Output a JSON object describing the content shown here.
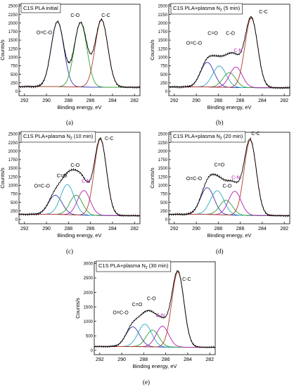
{
  "figure": {
    "panel_labels": [
      "(a)",
      "(b)",
      "(c)",
      "(d)",
      "(e)"
    ]
  },
  "chart_data": [
    {
      "type": "line",
      "panel": "(a)",
      "title": "C1S PLA initial",
      "xlabel": "Binding energy, eV",
      "ylabel": "Counts/s",
      "xlim": [
        292,
        282
      ],
      "ylim": [
        0,
        2500
      ],
      "x_ticks": [
        292,
        290,
        288,
        286,
        284,
        282
      ],
      "y_ticks": [
        0,
        250,
        500,
        750,
        1000,
        1250,
        1500,
        1750,
        2000,
        2250,
        2500
      ],
      "grid": false,
      "baseline": [
        [
          293,
          140
        ],
        [
          289,
          140
        ],
        [
          286,
          125
        ],
        [
          281.5,
          120
        ]
      ],
      "peaks": [
        {
          "label": "O=C-O",
          "center": 289.0,
          "height": 1900,
          "fwhm": 1.35,
          "color": "#3a3aa8"
        },
        {
          "label": "C-O",
          "center": 286.9,
          "height": 1880,
          "fwhm": 1.35,
          "color": "#32a032"
        },
        {
          "label": "C-C",
          "center": 285.0,
          "height": 1970,
          "fwhm": 1.35,
          "color": "#b03a2a"
        }
      ],
      "peak_labels": [
        {
          "text": "O=C-O",
          "color": "#000000",
          "x": 290.2,
          "y": 1680
        },
        {
          "text": "C-O",
          "color": "#000000",
          "x": 287.4,
          "y": 2180
        },
        {
          "text": "C-C",
          "color": "#000000",
          "x": 284.6,
          "y": 2180
        }
      ]
    },
    {
      "type": "line",
      "panel": "(b)",
      "title": "C1S PLA+plasma N",
      "title_sub": "2",
      "title_tail": " (5 min)",
      "xlabel": "Binding energy, eV",
      "ylabel": "Counts/s",
      "xlim": [
        292,
        282
      ],
      "ylim": [
        0,
        2500
      ],
      "x_ticks": [
        292,
        290,
        288,
        286,
        284,
        282
      ],
      "y_ticks": [
        0,
        250,
        500,
        750,
        1000,
        1250,
        1500,
        1750,
        2000,
        2250,
        2500
      ],
      "grid": false,
      "baseline": [
        [
          293,
          130
        ],
        [
          289,
          130
        ],
        [
          286,
          110
        ],
        [
          281.5,
          105
        ]
      ],
      "peaks": [
        {
          "label": "O=C-O",
          "center": 289.0,
          "height": 720,
          "fwhm": 1.45,
          "color": "#3a3aa8"
        },
        {
          "label": "C=O",
          "center": 287.9,
          "height": 620,
          "fwhm": 1.45,
          "color": "#2aa8c8"
        },
        {
          "label": "C-O",
          "center": 287.0,
          "height": 430,
          "fwhm": 1.35,
          "color": "#32a032"
        },
        {
          "label": "C-N",
          "center": 286.4,
          "height": 600,
          "fwhm": 1.35,
          "color": "#b020b0"
        },
        {
          "label": "C-C",
          "center": 285.0,
          "height": 2040,
          "fwhm": 1.35,
          "color": "#b03a2a"
        }
      ],
      "peak_labels": [
        {
          "text": "O=C-O",
          "color": "#000000",
          "x": 290.2,
          "y": 1370
        },
        {
          "text": "C=O",
          "color": "#000000",
          "x": 288.5,
          "y": 1650
        },
        {
          "text": "C-O",
          "color": "#000000",
          "x": 286.9,
          "y": 1650
        },
        {
          "text": "C-N",
          "color": "#b020b0",
          "x": 286.2,
          "y": 1150
        },
        {
          "text": "C-C",
          "color": "#000000",
          "x": 283.9,
          "y": 2280
        }
      ]
    },
    {
      "type": "line",
      "panel": "(c)",
      "title": "C1S PLA+plasma N",
      "title_sub": "2",
      "title_tail": " (10 min)",
      "xlabel": "Binding energy, eV",
      "ylabel": "Counts/s",
      "xlim": [
        292,
        282
      ],
      "ylim": [
        0,
        2500
      ],
      "x_ticks": [
        292,
        290,
        288,
        286,
        284,
        282
      ],
      "y_ticks": [
        0,
        250,
        500,
        750,
        1000,
        1250,
        1500,
        1750,
        2000,
        2250,
        2500
      ],
      "grid": false,
      "baseline": [
        [
          293,
          150
        ],
        [
          289,
          150
        ],
        [
          286,
          120
        ],
        [
          281.5,
          110
        ]
      ],
      "peaks": [
        {
          "label": "O=C-O",
          "center": 289.2,
          "height": 560,
          "fwhm": 1.45,
          "color": "#3a3aa8"
        },
        {
          "label": "C=O",
          "center": 288.1,
          "height": 880,
          "fwhm": 1.45,
          "color": "#2aa8c8"
        },
        {
          "label": "C-O",
          "center": 287.3,
          "height": 580,
          "fwhm": 1.35,
          "color": "#32a032"
        },
        {
          "label": "C-N",
          "center": 286.6,
          "height": 720,
          "fwhm": 1.35,
          "color": "#b020b0"
        },
        {
          "label": "C-C",
          "center": 285.1,
          "height": 2230,
          "fwhm": 1.3,
          "color": "#b03a2a"
        }
      ],
      "peak_labels": [
        {
          "text": "O=C-O",
          "color": "#000000",
          "x": 290.4,
          "y": 930
        },
        {
          "text": "C=O",
          "color": "#000000",
          "x": 288.6,
          "y": 1230
        },
        {
          "text": "C-O",
          "color": "#000000",
          "x": 287.4,
          "y": 1540
        },
        {
          "text": "C-N",
          "color": "#b020b0",
          "x": 286.4,
          "y": 1080
        },
        {
          "text": "C-C",
          "color": "#000000",
          "x": 284.3,
          "y": 2320
        }
      ]
    },
    {
      "type": "line",
      "panel": "(d)",
      "title": "C1S PLA+plasma N",
      "title_sub": "2",
      "title_tail": " (20 min)",
      "xlabel": "Binding energy, eV",
      "ylabel": "Counts/s",
      "xlim": [
        292,
        282
      ],
      "ylim": [
        0,
        2500
      ],
      "x_ticks": [
        292,
        290,
        288,
        286,
        284,
        282
      ],
      "y_ticks": [
        0,
        250,
        500,
        750,
        1000,
        1250,
        1500,
        1750,
        2000,
        2250,
        2500
      ],
      "grid": false,
      "baseline": [
        [
          293,
          150
        ],
        [
          289,
          150
        ],
        [
          286,
          120
        ],
        [
          281.5,
          110
        ]
      ],
      "peaks": [
        {
          "label": "O=C-O",
          "center": 289.0,
          "height": 780,
          "fwhm": 1.45,
          "color": "#3a3aa8"
        },
        {
          "label": "C=O",
          "center": 288.1,
          "height": 700,
          "fwhm": 1.45,
          "color": "#2aa8c8"
        },
        {
          "label": "C-O",
          "center": 287.3,
          "height": 430,
          "fwhm": 1.35,
          "color": "#32a032"
        },
        {
          "label": "C-N",
          "center": 286.5,
          "height": 700,
          "fwhm": 1.35,
          "color": "#b020b0"
        },
        {
          "label": "C-C",
          "center": 285.1,
          "height": 2200,
          "fwhm": 1.3,
          "color": "#b03a2a"
        }
      ],
      "peak_labels": [
        {
          "text": "O=C-O",
          "color": "#000000",
          "x": 290.2,
          "y": 1150
        },
        {
          "text": "C=O",
          "color": "#000000",
          "x": 287.9,
          "y": 1550
        },
        {
          "text": "C-O",
          "color": "#000000",
          "x": 287.2,
          "y": 930
        },
        {
          "text": "C-N",
          "color": "#b020b0",
          "x": 286.4,
          "y": 1180
        },
        {
          "text": "C-C",
          "color": "#000000",
          "x": 284.6,
          "y": 2470
        }
      ]
    },
    {
      "type": "line",
      "panel": "(e)",
      "title": "C1S PLA+plasma N",
      "title_sub": "2",
      "title_tail": " (30 min)",
      "xlabel": "Binding energy, eV",
      "ylabel": "Counts/s",
      "xlim": [
        292,
        282
      ],
      "ylim": [
        0,
        3000
      ],
      "x_ticks": [
        292,
        290,
        288,
        286,
        284,
        282
      ],
      "y_ticks": [
        0,
        500,
        1000,
        1500,
        2000,
        2500,
        3000
      ],
      "grid": false,
      "baseline": [
        [
          293,
          130
        ],
        [
          289,
          130
        ],
        [
          286,
          110
        ],
        [
          281.5,
          105
        ]
      ],
      "peaks": [
        {
          "label": "O=C-O",
          "center": 289.0,
          "height": 680,
          "fwhm": 1.45,
          "color": "#3a3aa8"
        },
        {
          "label": "C=O",
          "center": 287.9,
          "height": 780,
          "fwhm": 1.45,
          "color": "#2aa8c8"
        },
        {
          "label": "C-O",
          "center": 287.2,
          "height": 580,
          "fwhm": 1.35,
          "color": "#32a032"
        },
        {
          "label": "C-N",
          "center": 286.3,
          "height": 720,
          "fwhm": 1.35,
          "color": "#b020b0"
        },
        {
          "label": "C-C",
          "center": 284.9,
          "height": 2600,
          "fwhm": 1.3,
          "color": "#b03a2a"
        }
      ],
      "peak_labels": [
        {
          "text": "O=C-O",
          "color": "#000000",
          "x": 290.1,
          "y": 1250
        },
        {
          "text": "C=O",
          "color": "#000000",
          "x": 288.6,
          "y": 1530
        },
        {
          "text": "C-O",
          "color": "#000000",
          "x": 287.3,
          "y": 1730
        },
        {
          "text": "C-N",
          "color": "#b020b0",
          "x": 286.5,
          "y": 1150
        },
        {
          "text": "C-C",
          "color": "#000000",
          "x": 284.1,
          "y": 2400
        }
      ]
    }
  ]
}
